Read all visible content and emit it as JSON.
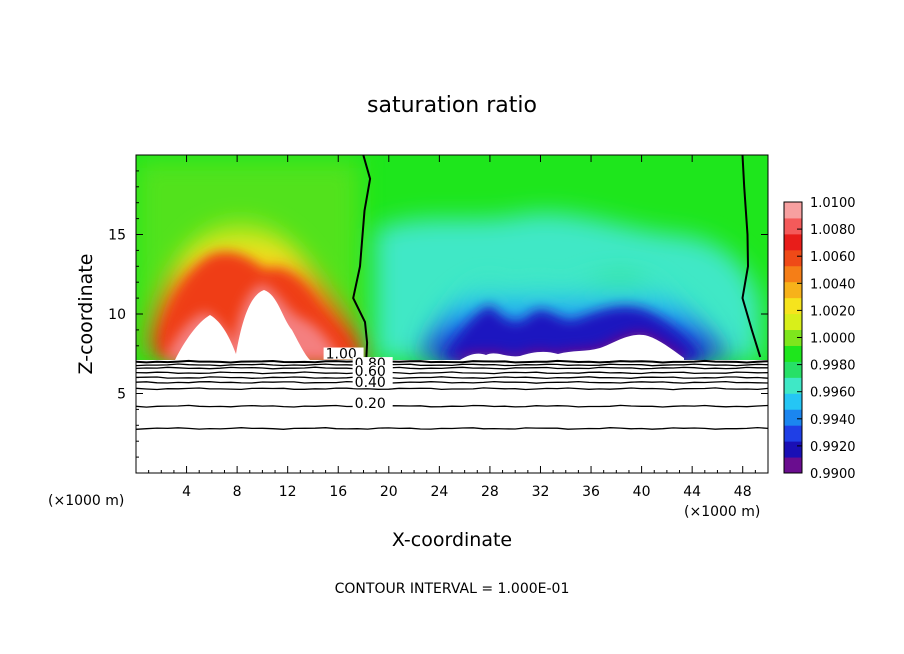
{
  "chart_data": {
    "type": "heatmap",
    "title": "saturation ratio",
    "xlabel": "X-coordinate",
    "ylabel": "Z-coordinate",
    "x_unit_label": "(×1000 m)",
    "y_unit_label": "(×1000 m)",
    "xlim": [
      0,
      50
    ],
    "ylim": [
      0,
      20
    ],
    "x_ticks": [
      4,
      8,
      12,
      16,
      20,
      24,
      28,
      32,
      36,
      40,
      44,
      48
    ],
    "y_ticks": [
      5,
      10,
      15
    ],
    "footer": "CONTOUR INTERVAL = 1.000E-01",
    "colorbar": {
      "min": 0.99,
      "max": 1.01,
      "tick_labels": [
        "0.9900",
        "0.9920",
        "0.9940",
        "0.9960",
        "0.9980",
        "1.0000",
        "1.0020",
        "1.0040",
        "1.0060",
        "1.0080",
        "1.0100"
      ],
      "colors": [
        "#6a0d8f",
        "#1a0fb5",
        "#1f3fe6",
        "#1b86f0",
        "#25c6f5",
        "#3fe8c6",
        "#27e067",
        "#1ee61c",
        "#7ee61c",
        "#d8ef1a",
        "#f6e41d",
        "#f7b21a",
        "#f57e17",
        "#ef4a17",
        "#e81d1a",
        "#f45a5a",
        "#f7a0a0"
      ]
    },
    "surface_height_km": 7.0,
    "contour_labels": [
      {
        "text": "1.00",
        "x": 15.0,
        "z": 7.2
      },
      {
        "text": "0.80",
        "x": 17.3,
        "z": 6.6
      },
      {
        "text": "0.60",
        "x": 17.3,
        "z": 6.1
      },
      {
        "text": "0.40",
        "x": 17.3,
        "z": 5.4
      },
      {
        "text": "0.20",
        "x": 17.3,
        "z": 4.1
      }
    ],
    "contour_levels_z": [
      7.0,
      6.8,
      6.6,
      6.3,
      6.0,
      5.7,
      5.3,
      4.2,
      2.8
    ],
    "boundary_1_0_z": [
      [
        18.1,
        20
      ],
      [
        18.4,
        18.5
      ],
      [
        18.2,
        16.5
      ],
      [
        17.6,
        13
      ],
      [
        17.3,
        11
      ],
      [
        18.0,
        9.5
      ],
      [
        18.4,
        8.2
      ],
      [
        18.1,
        7.2
      ]
    ],
    "boundary_right_z": [
      [
        48.1,
        20
      ],
      [
        48.0,
        18
      ],
      [
        48.5,
        15
      ],
      [
        48.3,
        13
      ],
      [
        48.1,
        11
      ],
      [
        48.6,
        9
      ],
      [
        49.5,
        7.3
      ]
    ],
    "supersaturated_regions": [
      {
        "center_x": 6.0,
        "center_z": 10.5,
        "peak": 1.01
      },
      {
        "center_x": 10.3,
        "center_z": 11.0,
        "peak": 1.01
      },
      {
        "center_x": 14.5,
        "center_z": 9.5,
        "peak": 1.006
      }
    ],
    "subsaturated_regions": [
      {
        "center_x": 26.5,
        "center_z": 9.0,
        "min": 0.992
      },
      {
        "center_x": 31.0,
        "center_z": 9.5,
        "min": 0.992
      },
      {
        "center_x": 36.0,
        "center_z": 9.0,
        "min": 0.993
      },
      {
        "center_x": 40.0,
        "center_z": 9.5,
        "min": 0.991
      },
      {
        "center_x": 44.0,
        "center_z": 9.0,
        "min": 0.993
      }
    ]
  }
}
